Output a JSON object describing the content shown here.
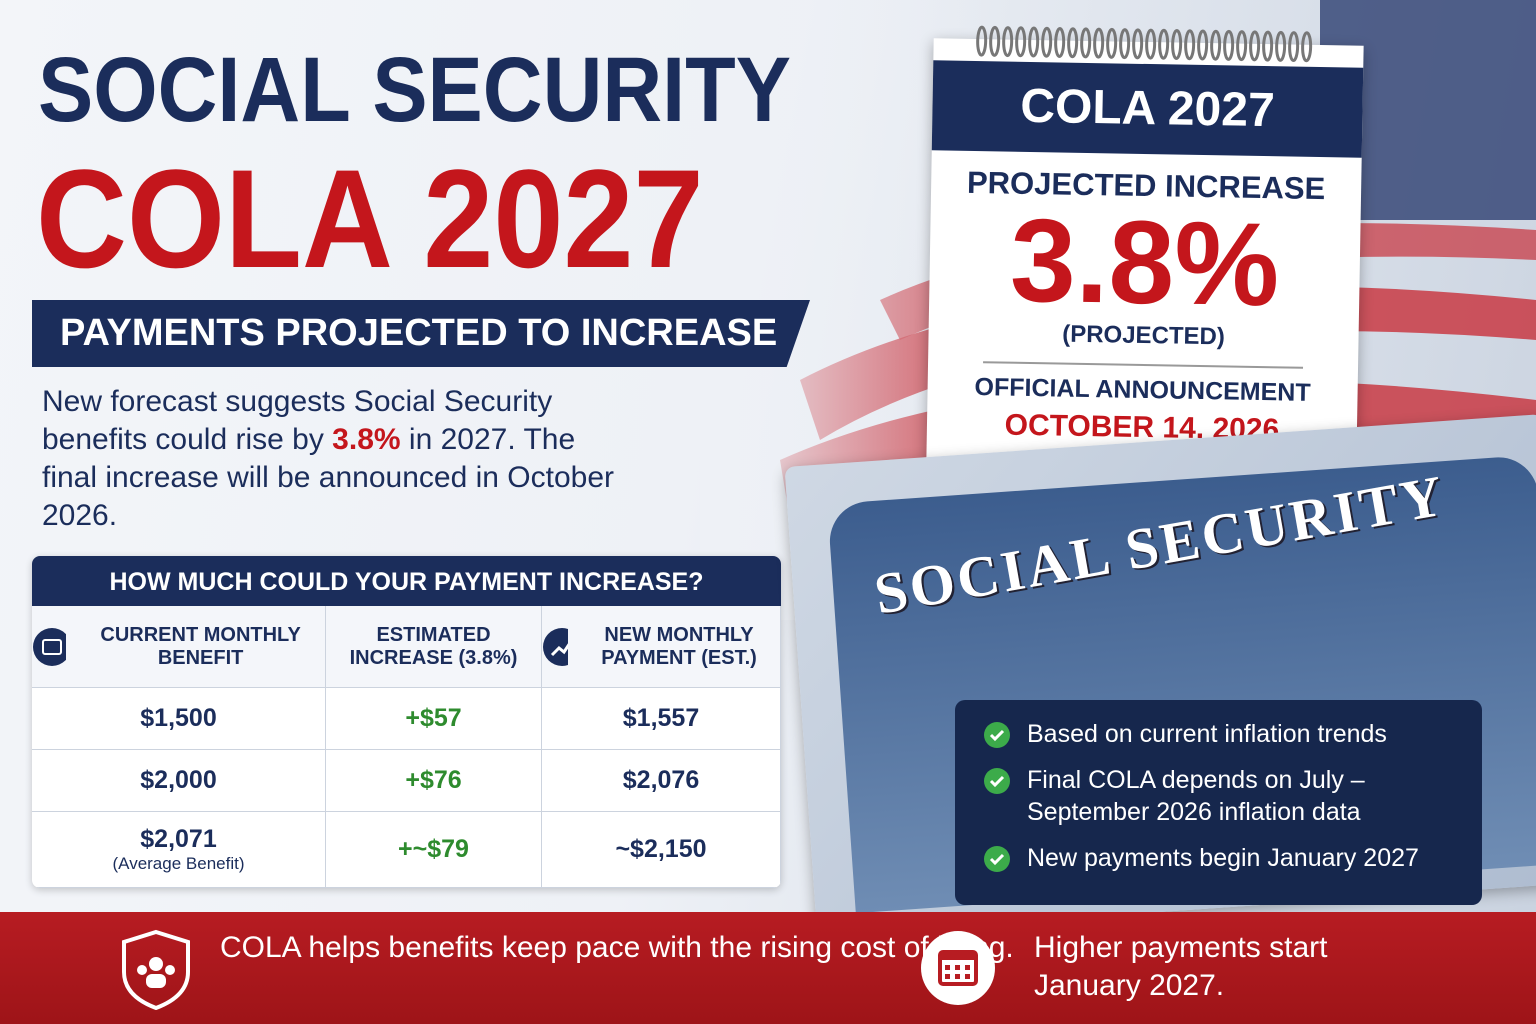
{
  "title": {
    "line1": "SOCIAL SECURITY",
    "line2": "COLA 2027"
  },
  "banner": "PAYMENTS PROJECTED TO INCREASE",
  "intro": {
    "before": "New forecast suggests Social Security benefits could rise by",
    "highlight": "3.8%",
    "after": "in 2027. The final increase will be announced in October 2026."
  },
  "table": {
    "title": "HOW MUCH COULD YOUR PAYMENT INCREASE?",
    "headers": [
      "CURRENT MONTHLY BENEFIT",
      "ESTIMATED INCREASE (3.8%)",
      "NEW MONTHLY PAYMENT (EST.)"
    ],
    "rows": [
      [
        "$1,500",
        "+$57",
        "$1,557"
      ],
      [
        "$2,000",
        "+$76",
        "$2,076"
      ],
      [
        "$2,071",
        "+~$79",
        "~$2,150"
      ]
    ],
    "row_note": "(Average Benefit)"
  },
  "calendar": {
    "header": "COLA 2027",
    "label": "PROJECTED INCREASE",
    "value": "3.8%",
    "qualifier": "(PROJECTED)",
    "announcement_label": "OFFICIAL ANNOUNCEMENT",
    "announcement_date": "OCTOBER 14, 2026"
  },
  "card": {
    "title": "SOCIAL SECURITY"
  },
  "checklist": [
    "Based on current inflation trends",
    "Final COLA depends on July – September 2026 inflation data",
    "New payments begin January 2027"
  ],
  "footer": [
    "COLA helps benefits keep pace with the rising cost of living.",
    "Higher payments start January 2027."
  ]
}
